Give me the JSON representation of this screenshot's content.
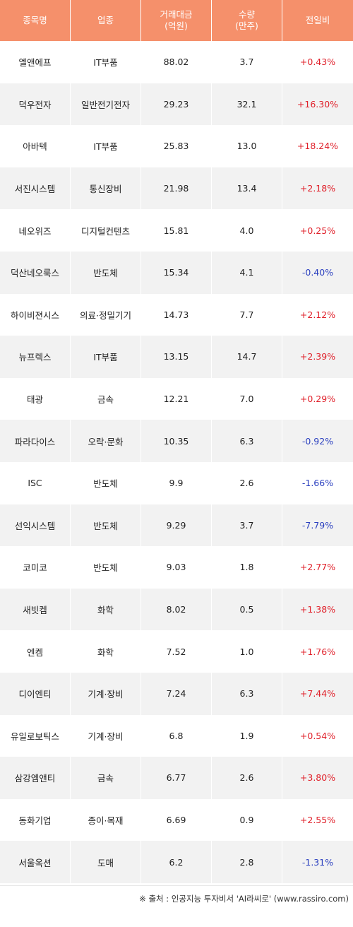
{
  "table": {
    "headers": [
      "종목명",
      "업종",
      "거래대금\n(억원)",
      "수량\n(만주)",
      "전일비"
    ],
    "rows": [
      {
        "name": "엘앤에프",
        "sector": "IT부품",
        "amount": "88.02",
        "volume": "3.7",
        "change": "+0.43%",
        "dir": "up"
      },
      {
        "name": "덕우전자",
        "sector": "일반전기전자",
        "amount": "29.23",
        "volume": "32.1",
        "change": "+16.30%",
        "dir": "up"
      },
      {
        "name": "아바텍",
        "sector": "IT부품",
        "amount": "25.83",
        "volume": "13.0",
        "change": "+18.24%",
        "dir": "up"
      },
      {
        "name": "서진시스템",
        "sector": "통신장비",
        "amount": "21.98",
        "volume": "13.4",
        "change": "+2.18%",
        "dir": "up"
      },
      {
        "name": "네오위즈",
        "sector": "디지털컨텐츠",
        "amount": "15.81",
        "volume": "4.0",
        "change": "+0.25%",
        "dir": "up"
      },
      {
        "name": "덕산네오룩스",
        "sector": "반도체",
        "amount": "15.34",
        "volume": "4.1",
        "change": "-0.40%",
        "dir": "down"
      },
      {
        "name": "하이비젼시스",
        "sector": "의료·정밀기기",
        "amount": "14.73",
        "volume": "7.7",
        "change": "+2.12%",
        "dir": "up"
      },
      {
        "name": "뉴프렉스",
        "sector": "IT부품",
        "amount": "13.15",
        "volume": "14.7",
        "change": "+2.39%",
        "dir": "up"
      },
      {
        "name": "태광",
        "sector": "금속",
        "amount": "12.21",
        "volume": "7.0",
        "change": "+0.29%",
        "dir": "up"
      },
      {
        "name": "파라다이스",
        "sector": "오락·문화",
        "amount": "10.35",
        "volume": "6.3",
        "change": "-0.92%",
        "dir": "down"
      },
      {
        "name": "ISC",
        "sector": "반도체",
        "amount": "9.9",
        "volume": "2.6",
        "change": "-1.66%",
        "dir": "down"
      },
      {
        "name": "선익시스템",
        "sector": "반도체",
        "amount": "9.29",
        "volume": "3.7",
        "change": "-7.79%",
        "dir": "down"
      },
      {
        "name": "코미코",
        "sector": "반도체",
        "amount": "9.03",
        "volume": "1.8",
        "change": "+2.77%",
        "dir": "up"
      },
      {
        "name": "새빗켐",
        "sector": "화학",
        "amount": "8.02",
        "volume": "0.5",
        "change": "+1.38%",
        "dir": "up"
      },
      {
        "name": "엔켐",
        "sector": "화학",
        "amount": "7.52",
        "volume": "1.0",
        "change": "+1.76%",
        "dir": "up"
      },
      {
        "name": "디이엔티",
        "sector": "기계·장비",
        "amount": "7.24",
        "volume": "6.3",
        "change": "+7.44%",
        "dir": "up"
      },
      {
        "name": "유일로보틱스",
        "sector": "기계·장비",
        "amount": "6.8",
        "volume": "1.9",
        "change": "+0.54%",
        "dir": "up"
      },
      {
        "name": "삼강엠앤티",
        "sector": "금속",
        "amount": "6.77",
        "volume": "2.6",
        "change": "+3.80%",
        "dir": "up"
      },
      {
        "name": "동화기업",
        "sector": "종이·목재",
        "amount": "6.69",
        "volume": "0.9",
        "change": "+2.55%",
        "dir": "up"
      },
      {
        "name": "서울옥션",
        "sector": "도매",
        "amount": "6.2",
        "volume": "2.8",
        "change": "-1.31%",
        "dir": "down"
      }
    ]
  },
  "colors": {
    "header_bg": "#f5906b",
    "up": "#e0202a",
    "down": "#2a3fbf",
    "stripe": "#f2f2f2"
  },
  "footer": {
    "source": "※ 출처 : 인공지능 투자비서 'AI라씨로' (www.rassiro.com)"
  }
}
